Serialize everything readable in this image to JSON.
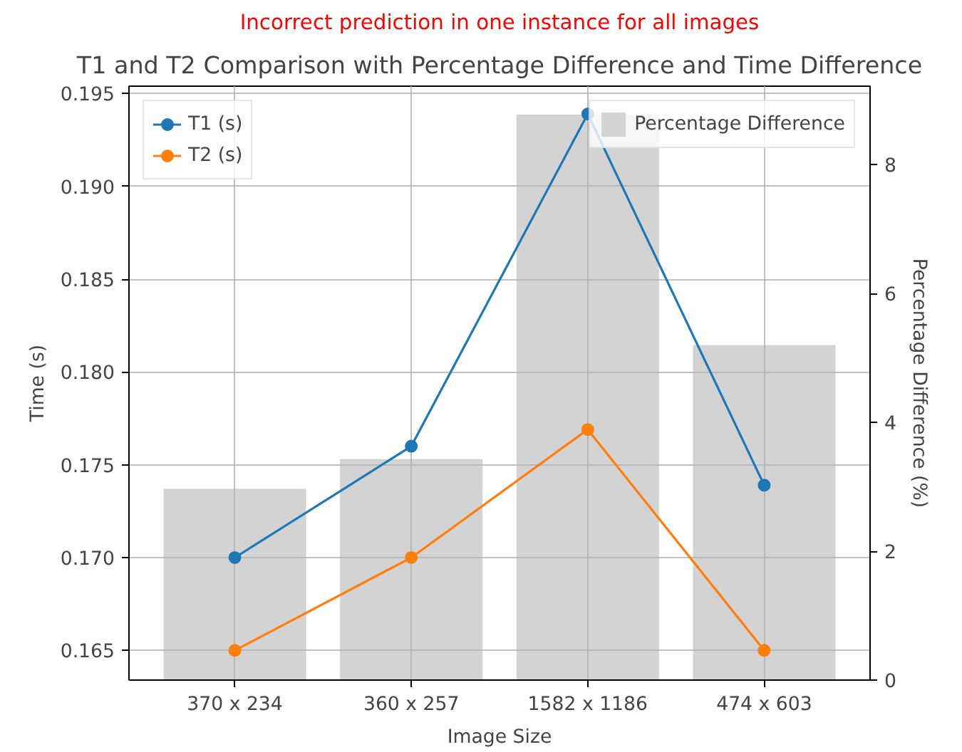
{
  "chart_data": {
    "type": "line",
    "subtitle": "Incorrect prediction in one instance for all images",
    "title": "T1 and T2 Comparison with Percentage Difference and Time Difference",
    "xlabel": "Image Size",
    "ylabel": "Time (s)",
    "y2label": "Percentage Difference (%)",
    "categories": [
      "370 x 234",
      "360 x 257",
      "1582 x 1186",
      "474 x 603"
    ],
    "series": [
      {
        "name": "Percentage Difference",
        "type": "bar",
        "axis": "y2",
        "color": "#d3d3d3",
        "values": [
          2.96,
          3.42,
          8.77,
          5.19
        ]
      },
      {
        "name": "T1 (s)",
        "color": "#1f77b4",
        "values": [
          0.17,
          0.176,
          0.1939,
          0.1739
        ]
      },
      {
        "name": "T2 (s)",
        "color": "#ff7f0e",
        "values": [
          0.165,
          0.17,
          0.1769,
          0.165
        ]
      }
    ],
    "ylim": [
      0.1634,
      0.1954
    ],
    "yticks": [
      0.165,
      {
        "value": 0.17,
        "label": "0.170"
      },
      0.175,
      {
        "value": 0.18,
        "label": "0.180"
      },
      0.185,
      {
        "value": 0.19,
        "label": "0.190"
      },
      0.195
    ],
    "y2lim": [
      0,
      9.22
    ],
    "y2ticks": [
      0,
      2,
      4,
      6,
      8
    ],
    "grid": true,
    "legend": "top",
    "marker": "circle"
  }
}
